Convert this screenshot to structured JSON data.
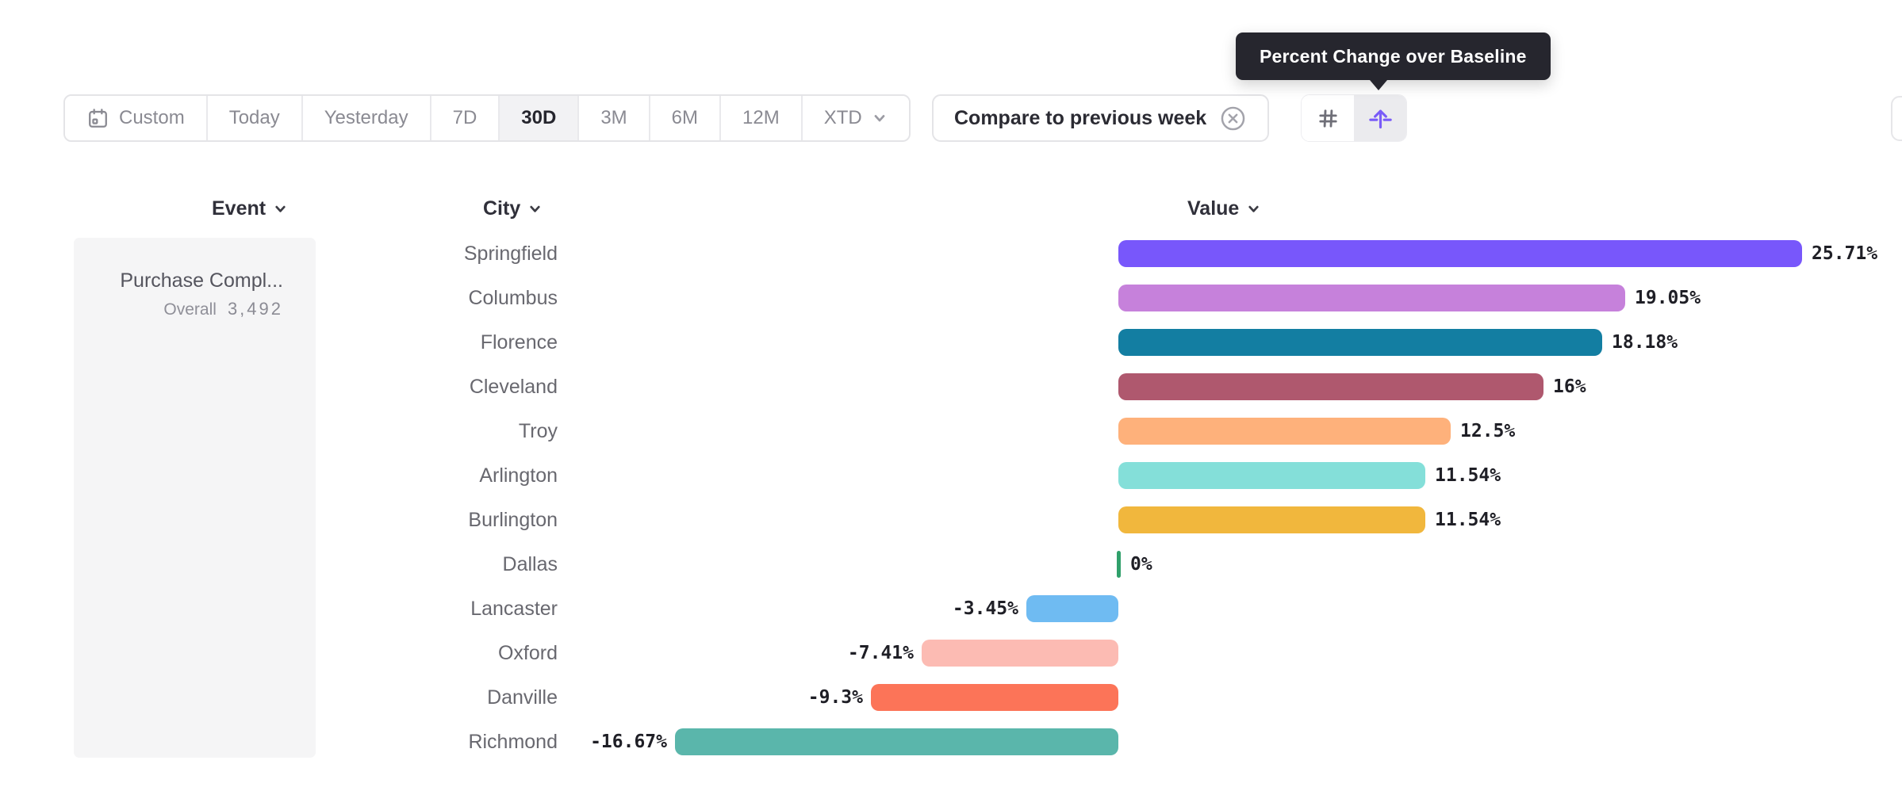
{
  "tooltip": {
    "text": "Percent Change over Baseline"
  },
  "toolbar": {
    "date_buttons": [
      {
        "label": "Custom",
        "icon": "calendar-icon",
        "selected": false
      },
      {
        "label": "Today",
        "selected": false
      },
      {
        "label": "Yesterday",
        "selected": false
      },
      {
        "label": "7D",
        "selected": false
      },
      {
        "label": "30D",
        "selected": true
      },
      {
        "label": "3M",
        "selected": false
      },
      {
        "label": "6M",
        "selected": false
      },
      {
        "label": "12M",
        "selected": false
      },
      {
        "label": "XTD",
        "icon": "chevron-down-icon",
        "selected": false
      }
    ],
    "compare": {
      "label": "Compare to previous week",
      "dismiss_icon": "circle-x-icon"
    },
    "view_toggle": [
      {
        "icon": "grid-number-icon",
        "selected": false
      },
      {
        "icon": "baseline-arrow-icon",
        "selected": true,
        "accent": "#7a5cf8"
      }
    ]
  },
  "columns": {
    "event": "Event",
    "city": "City",
    "value": "Value"
  },
  "event_panel": {
    "name": "Purchase Compl...",
    "metric_label": "Overall",
    "metric_value": "3,492"
  },
  "chart_data": {
    "type": "bar",
    "orientation": "horizontal",
    "value_format": "percent_change_over_baseline",
    "baseline": 0,
    "categories": [
      "Springfield",
      "Columbus",
      "Florence",
      "Cleveland",
      "Troy",
      "Arlington",
      "Burlington",
      "Dallas",
      "Lancaster",
      "Oxford",
      "Danville",
      "Richmond"
    ],
    "values": [
      25.71,
      19.05,
      18.18,
      16,
      12.5,
      11.54,
      11.54,
      0,
      -3.45,
      -7.41,
      -9.3,
      -16.67
    ],
    "labels": [
      "25.71%",
      "19.05%",
      "18.18%",
      "16%",
      "12.5%",
      "11.54%",
      "11.54%",
      "0%",
      "-3.45%",
      "-7.41%",
      "-9.3%",
      "-16.67%"
    ],
    "colors": [
      "#7857FB",
      "#C681DB",
      "#137EA2",
      "#AF586E",
      "#FEB17B",
      "#84DFD9",
      "#F1B73D",
      "#30A06B",
      "#6FBBF2",
      "#FCBBB3",
      "#FC7458",
      "#5AB6AB"
    ],
    "xlim": [
      -20,
      29
    ]
  },
  "ui_colors": {
    "tooltip_bg": "#26262e",
    "border": "#e4e4e7",
    "selected_bg": "#f2f2f4",
    "panel_bg": "#f5f5f6",
    "accent_purple": "#7a5cf8",
    "zero_tick_green": "#30A06B"
  }
}
